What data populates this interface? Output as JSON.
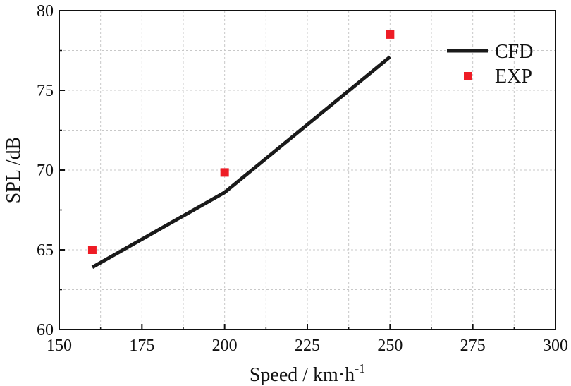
{
  "chart_data": {
    "type": "line",
    "title": "",
    "xlabel": "Speed / km·h",
    "xlabel_sup": "-1",
    "ylabel": "SPL /dB",
    "xlim": [
      150,
      300
    ],
    "ylim": [
      60,
      80
    ],
    "xticks": [
      150,
      175,
      200,
      225,
      250,
      275,
      300
    ],
    "yticks": [
      60,
      65,
      70,
      75,
      80
    ],
    "grid": true,
    "legend_position": "top-right",
    "series": [
      {
        "name": "CFD",
        "kind": "line",
        "color": "#1a1a1a",
        "x": [
          160,
          200,
          250
        ],
        "y": [
          63.9,
          68.6,
          77.1
        ]
      },
      {
        "name": "EXP",
        "kind": "scatter",
        "marker": "square",
        "color": "#ee1c25",
        "x": [
          160,
          200,
          250
        ],
        "y": [
          65.0,
          69.85,
          78.5
        ]
      }
    ]
  }
}
